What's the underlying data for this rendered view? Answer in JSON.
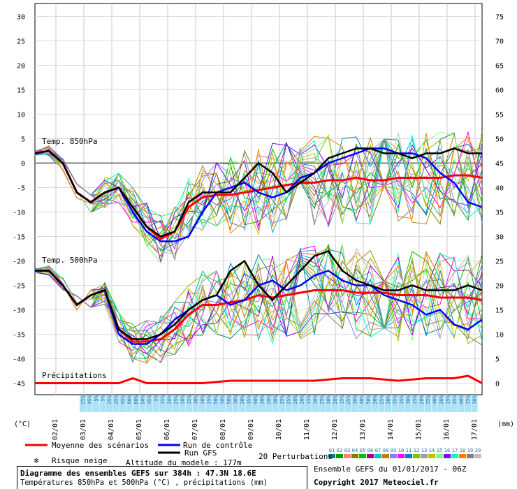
{
  "chart_data": {
    "type": "line",
    "title": "Diagramme des ensembles GEFS sur 384h : 47.3N 18.6E",
    "subtitle": "Températures 850hPa et 500hPa (°C) , précipitations (mm)",
    "left_unit": "(°C)",
    "right_unit": "(mm)",
    "left_ticks": [
      30,
      25,
      20,
      15,
      10,
      5,
      0,
      -5,
      -10,
      -15,
      -20,
      -25,
      -30,
      -35,
      -40,
      -45
    ],
    "right_ticks": [
      75,
      70,
      65,
      60,
      55,
      50,
      45,
      40,
      35,
      30,
      25,
      20,
      15,
      10,
      5,
      0
    ],
    "x_labels": [
      "02/01",
      "03/01",
      "04/01",
      "05/01",
      "06/01",
      "07/01",
      "08/01",
      "09/01",
      "10/01",
      "11/01",
      "12/01",
      "13/01",
      "14/01",
      "15/01",
      "16/01",
      "17/01"
    ],
    "ylim_temp": [
      -45,
      30
    ],
    "ylim_precip": [
      0,
      75
    ],
    "x_range_hours": [
      0,
      384
    ],
    "panel_labels": {
      "t850": "Temp. 850hPa",
      "t500": "Temp. 500hPa",
      "precip": "Précipitations"
    },
    "series": [
      {
        "name": "Moyenne des scénarios",
        "color": "#ff0000",
        "group": "t850",
        "x": [
          0,
          12,
          24,
          36,
          48,
          60,
          72,
          84,
          96,
          108,
          120,
          132,
          144,
          156,
          168,
          180,
          192,
          204,
          216,
          228,
          240,
          252,
          264,
          276,
          288,
          300,
          312,
          324,
          336,
          348,
          360,
          372,
          384
        ],
        "values": [
          2,
          2.5,
          0,
          -6,
          -8,
          -6,
          -5,
          -9,
          -13,
          -15.5,
          -14,
          -9,
          -7,
          -6.5,
          -6.5,
          -6,
          -5.5,
          -5,
          -4.5,
          -4,
          -4,
          -3.5,
          -3.5,
          -3,
          -3.5,
          -3.5,
          -3,
          -3,
          -3,
          -3,
          -2.5,
          -2.5,
          -3
        ]
      },
      {
        "name": "Run de contrôle",
        "color": "#0000ff",
        "group": "t850",
        "x": [
          0,
          12,
          24,
          36,
          48,
          60,
          72,
          84,
          96,
          108,
          120,
          132,
          144,
          156,
          168,
          180,
          192,
          204,
          216,
          228,
          240,
          252,
          264,
          276,
          288,
          300,
          312,
          324,
          336,
          348,
          360,
          372,
          384
        ],
        "values": [
          2,
          2.5,
          0,
          -6,
          -8,
          -6,
          -5,
          -10,
          -14,
          -16,
          -16,
          -15,
          -10,
          -6,
          -5,
          -4,
          -6,
          -7,
          -6,
          -3,
          -2,
          0,
          1,
          2,
          3,
          3,
          2,
          2,
          1,
          -2,
          -4,
          -8,
          -9
        ]
      },
      {
        "name": "Run GFS",
        "color": "#000000",
        "group": "t850",
        "x": [
          0,
          12,
          24,
          36,
          48,
          60,
          72,
          84,
          96,
          108,
          120,
          132,
          144,
          156,
          168,
          180,
          192,
          204,
          216,
          228,
          240,
          252,
          264,
          276,
          288,
          300,
          312,
          324,
          336,
          348,
          360,
          372,
          384
        ],
        "values": [
          2,
          2.5,
          0,
          -6,
          -8,
          -6,
          -5,
          -9,
          -13,
          -15,
          -14,
          -8,
          -6,
          -6,
          -6,
          -3,
          0,
          -2,
          -6,
          -4,
          -2,
          1,
          2,
          3,
          3,
          2,
          2,
          1,
          2,
          2,
          3,
          2,
          2
        ]
      },
      {
        "name": "Moyenne des scénarios",
        "color": "#ff0000",
        "group": "t500",
        "x": [
          0,
          12,
          24,
          36,
          48,
          60,
          72,
          84,
          96,
          108,
          120,
          132,
          144,
          156,
          168,
          180,
          192,
          204,
          216,
          228,
          240,
          252,
          264,
          276,
          288,
          300,
          312,
          324,
          336,
          348,
          360,
          372,
          384
        ],
        "values": [
          -22,
          -22,
          -25,
          -29,
          -27,
          -26,
          -34,
          -36.5,
          -36.5,
          -36,
          -34,
          -31,
          -29,
          -29,
          -28.5,
          -28,
          -27,
          -27.5,
          -27,
          -26.5,
          -26,
          -26,
          -26,
          -26.5,
          -26.5,
          -26.5,
          -27,
          -27,
          -27,
          -27.5,
          -27.5,
          -27.5,
          -28
        ]
      },
      {
        "name": "Run de contrôle",
        "color": "#0000ff",
        "group": "t500",
        "x": [
          0,
          12,
          24,
          36,
          48,
          60,
          72,
          84,
          96,
          108,
          120,
          132,
          144,
          156,
          168,
          180,
          192,
          204,
          216,
          228,
          240,
          252,
          264,
          276,
          288,
          300,
          312,
          324,
          336,
          348,
          360,
          372,
          384
        ],
        "values": [
          -22,
          -22,
          -25,
          -29,
          -27,
          -26,
          -35,
          -37,
          -37,
          -35,
          -32,
          -30,
          -28,
          -27,
          -29,
          -28,
          -25,
          -24,
          -26,
          -25,
          -23,
          -22,
          -24,
          -25,
          -25,
          -27,
          -28,
          -29,
          -31,
          -30,
          -33,
          -34,
          -32
        ]
      },
      {
        "name": "Run GFS",
        "color": "#000000",
        "group": "t500",
        "x": [
          0,
          12,
          24,
          36,
          48,
          60,
          72,
          84,
          96,
          108,
          120,
          132,
          144,
          156,
          168,
          180,
          192,
          204,
          216,
          228,
          240,
          252,
          264,
          276,
          288,
          300,
          312,
          324,
          336,
          348,
          360,
          372,
          384
        ],
        "values": [
          -22,
          -22,
          -25,
          -29,
          -27,
          -26,
          -34,
          -36,
          -36,
          -35,
          -33,
          -30,
          -28,
          -27,
          -22,
          -20,
          -25,
          -28,
          -25,
          -22,
          -19,
          -18,
          -22,
          -24,
          -25,
          -26,
          -26,
          -25,
          -26,
          -26,
          -26,
          -25,
          -26
        ]
      },
      {
        "name": "Moyenne des scénarios",
        "color": "#ff0000",
        "group": "precip",
        "x": [
          0,
          24,
          48,
          72,
          84,
          96,
          120,
          144,
          168,
          192,
          216,
          240,
          264,
          288,
          312,
          336,
          360,
          372,
          384
        ],
        "values": [
          0,
          0,
          0,
          0,
          1,
          0,
          0,
          0,
          0.5,
          0.5,
          0.5,
          0.5,
          1,
          1,
          0.5,
          1,
          1,
          1.5,
          0
        ]
      }
    ],
    "legend": [
      "Moyenne des scénarios",
      "Run de contrôle",
      "Run GFS",
      "Risque neige"
    ],
    "snow_risk": [
      "25%",
      "45%",
      "5%",
      "5%",
      "25%",
      "25%",
      "45%",
      "90%",
      "80%",
      "50%",
      "45%",
      "5%",
      "15%",
      "20%",
      "25%",
      "10%",
      "15%",
      "30%",
      "10%",
      "15%",
      "50%",
      "30%",
      "50%",
      "30%",
      "30%",
      "35%",
      "40%",
      "30%",
      "20%",
      "30%",
      "15%",
      "25%",
      "20%",
      "20%",
      "15%",
      "30%",
      "25%",
      "30%",
      "20%",
      "15%",
      "25%",
      "30%",
      "40%",
      "50%",
      "30%",
      "25%",
      "30%",
      "35%",
      "15%",
      "30%",
      "15%",
      "20%",
      "35%",
      "40%",
      "30%",
      "15%",
      "35%",
      "40%",
      "15%",
      "30%"
    ]
  },
  "footer": {
    "altitude": "Altitude du modele : 177m",
    "perturbations": "20 Perturbations",
    "perturbation_numbers": [
      "01",
      "02",
      "03",
      "04",
      "05",
      "06",
      "07",
      "08",
      "09",
      "10",
      "11",
      "12",
      "13",
      "14",
      "15",
      "16",
      "17",
      "18",
      "19",
      "20"
    ],
    "perturbation_colors": [
      "#008080",
      "#00a000",
      "#ff8080",
      "#808000",
      "#00c000",
      "#a000a0",
      "#00c0c0",
      "#c08000",
      "#8080ff",
      "#ff00ff",
      "#0080c0",
      "#80c000",
      "#a0a0a0",
      "#c0c000",
      "#80ff80",
      "#8000ff",
      "#00ffc0",
      "#ff8000",
      "#808080",
      "#c0c0c0"
    ],
    "ensemble_info": "Ensemble GEFS du 01/01/2017 - 06Z",
    "copyright": "Copyright 2017 Meteociel.fr",
    "legend_mean": "Moyenne des scénarios",
    "legend_control": "Run de contrôle",
    "legend_gfs": "Run GFS",
    "legend_snow": "Risque neige"
  }
}
